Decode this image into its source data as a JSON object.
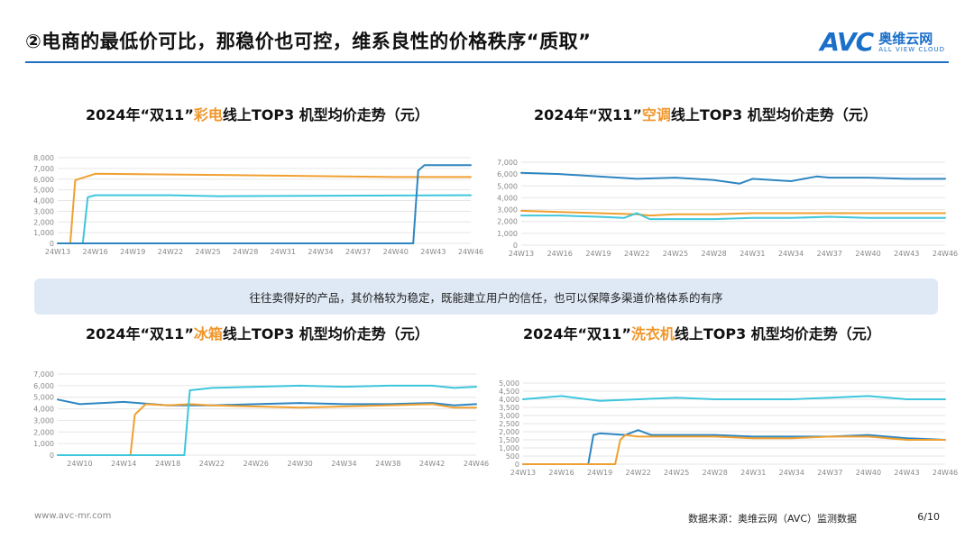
{
  "header": {
    "title": "②电商的最低价可比，那稳价也可控，维系良性的价格秩序“质取”",
    "logo_mark": "AVC",
    "logo_cn": "奥维云网",
    "logo_sub": "ALL VIEW CLOUD"
  },
  "charts_titles": [
    {
      "prefix": "2024年“双11”",
      "highlight": "彩电",
      "suffix": "线上TOP3 机型均价走势（元）"
    },
    {
      "prefix": "2024年“双11”",
      "highlight": "空调",
      "suffix": "线上TOP3 机型均价走势（元）"
    },
    {
      "prefix": "2024年“双11”",
      "highlight": "冰箱",
      "suffix": "线上TOP3 机型均价走势（元）"
    },
    {
      "prefix": "2024年“双11”",
      "highlight": "洗衣机",
      "suffix": "线上TOP3 机型均价走势（元）"
    }
  ],
  "banner_text": "往往卖得好的产品，其价格较为稳定，既能建立用户的信任，也可以保障多渠道价格体系的有序",
  "footer": {
    "url": "www.avc-mr.com",
    "source": "数据来源：奥维云网（AVC）监测数据",
    "page": "6/10"
  },
  "colors": {
    "blue": "#2e86c1",
    "orange": "#f0a030",
    "cyan": "#3ec6dc",
    "accent": "#f0962a",
    "rule": "#1f6fc2"
  },
  "chart_data": [
    {
      "type": "line",
      "ylim": [
        0,
        8000
      ],
      "yticks": [
        "0",
        "1,000",
        "2,000",
        "3,000",
        "4,000",
        "5,000",
        "6,000",
        "7,000",
        "8,000"
      ],
      "xticks": [
        "24W13",
        "24W16",
        "24W19",
        "24W22",
        "24W25",
        "24W28",
        "24W31",
        "24W34",
        "24W37",
        "24W40",
        "24W43",
        "24W46"
      ],
      "series": [
        {
          "color": "orange",
          "x": [
            13,
            14,
            14.4,
            16,
            25,
            40,
            46
          ],
          "y": [
            0,
            0,
            5900,
            6500,
            6400,
            6200,
            6200
          ]
        },
        {
          "color": "cyan",
          "x": [
            13,
            15,
            15.4,
            16,
            22,
            26,
            46
          ],
          "y": [
            0,
            0,
            4300,
            4500,
            4500,
            4400,
            4500
          ]
        },
        {
          "color": "blue",
          "x": [
            13,
            41.4,
            41.8,
            42.3,
            46
          ],
          "y": [
            0,
            0,
            6800,
            7300,
            7300
          ]
        }
      ]
    },
    {
      "type": "line",
      "ylim": [
        0,
        7000
      ],
      "yticks": [
        "0",
        "1,000",
        "2,000",
        "3,000",
        "4,000",
        "5,000",
        "6,000",
        "7,000"
      ],
      "xticks": [
        "24W13",
        "24W16",
        "24W19",
        "24W22",
        "24W25",
        "24W28",
        "24W31",
        "24W34",
        "24W37",
        "24W40",
        "24W43",
        "24W46"
      ],
      "series": [
        {
          "color": "blue",
          "x": [
            13,
            16,
            19,
            22,
            25,
            28,
            30,
            31,
            34,
            36,
            37,
            40,
            43,
            46
          ],
          "y": [
            6100,
            6000,
            5800,
            5600,
            5700,
            5500,
            5200,
            5600,
            5400,
            5800,
            5700,
            5700,
            5600,
            5600
          ]
        },
        {
          "color": "orange",
          "x": [
            13,
            16,
            19,
            22,
            23,
            25,
            28,
            31,
            34,
            37,
            40,
            43,
            46
          ],
          "y": [
            2900,
            2800,
            2700,
            2600,
            2500,
            2600,
            2600,
            2700,
            2700,
            2700,
            2700,
            2700,
            2700
          ]
        },
        {
          "color": "cyan",
          "x": [
            13,
            16,
            19,
            21,
            22,
            23,
            25,
            28,
            31,
            34,
            37,
            40,
            43,
            46
          ],
          "y": [
            2500,
            2500,
            2400,
            2300,
            2700,
            2200,
            2200,
            2200,
            2300,
            2300,
            2400,
            2300,
            2300,
            2300
          ]
        }
      ]
    },
    {
      "type": "line",
      "ylim": [
        0,
        7000
      ],
      "yticks": [
        "0",
        "1,000",
        "2,000",
        "3,000",
        "4,000",
        "5,000",
        "6,000",
        "7,000"
      ],
      "xticks": [
        "24W10",
        "24W14",
        "24W18",
        "24W22",
        "24W26",
        "24W30",
        "24W34",
        "24W38",
        "24W42",
        "24W46"
      ],
      "series": [
        {
          "color": "blue",
          "x": [
            8,
            10,
            14,
            18,
            22,
            26,
            30,
            34,
            38,
            42,
            44,
            46
          ],
          "y": [
            4800,
            4400,
            4600,
            4300,
            4300,
            4400,
            4500,
            4400,
            4400,
            4500,
            4300,
            4400
          ]
        },
        {
          "color": "orange",
          "x": [
            8,
            14.6,
            15,
            16,
            18,
            20,
            22,
            26,
            30,
            34,
            38,
            42,
            44,
            46
          ],
          "y": [
            0,
            0,
            3500,
            4400,
            4300,
            4400,
            4300,
            4200,
            4100,
            4200,
            4300,
            4400,
            4100,
            4100
          ]
        },
        {
          "color": "cyan",
          "x": [
            8,
            19.5,
            20,
            21,
            22,
            26,
            30,
            34,
            38,
            42,
            44,
            46
          ],
          "y": [
            0,
            0,
            5600,
            5700,
            5800,
            5900,
            6000,
            5900,
            6000,
            6000,
            5800,
            5900
          ]
        }
      ]
    },
    {
      "type": "line",
      "ylim": [
        0,
        5000
      ],
      "yticks": [
        "0",
        "500",
        "1,000",
        "1,500",
        "2,000",
        "2,500",
        "3,000",
        "3,500",
        "4,000",
        "4,500",
        "5,000"
      ],
      "xticks": [
        "24W13",
        "24W16",
        "24W19",
        "24W22",
        "24W25",
        "24W28",
        "24W31",
        "24W34",
        "24W37",
        "24W40",
        "24W43",
        "24W46"
      ],
      "series": [
        {
          "color": "cyan",
          "x": [
            13,
            16,
            19,
            22,
            25,
            28,
            31,
            34,
            37,
            40,
            43,
            46
          ],
          "y": [
            4000,
            4200,
            3900,
            4000,
            4100,
            4000,
            4000,
            4000,
            4100,
            4200,
            4000,
            4000
          ]
        },
        {
          "color": "blue",
          "x": [
            13,
            18.1,
            18.5,
            19,
            21,
            22,
            23,
            25,
            28,
            31,
            34,
            37,
            40,
            43,
            46
          ],
          "y": [
            0,
            0,
            1800,
            1900,
            1800,
            2100,
            1800,
            1800,
            1800,
            1700,
            1700,
            1700,
            1800,
            1600,
            1500
          ]
        },
        {
          "color": "orange",
          "x": [
            13,
            20.2,
            20.6,
            21,
            22,
            25,
            28,
            31,
            34,
            37,
            40,
            43,
            46
          ],
          "y": [
            0,
            0,
            1500,
            1800,
            1700,
            1700,
            1700,
            1600,
            1600,
            1700,
            1700,
            1500,
            1500
          ]
        }
      ]
    }
  ]
}
